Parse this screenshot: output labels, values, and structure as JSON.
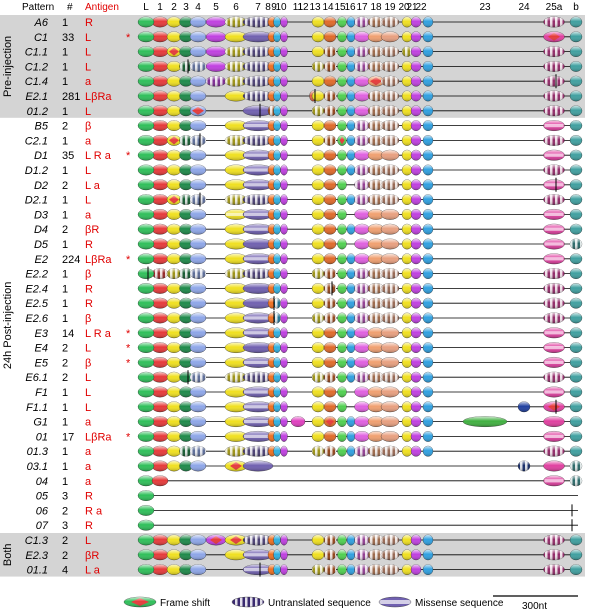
{
  "header": {
    "pattern": "Pattern",
    "count": "#",
    "antigen": "Antigen",
    "exons": [
      "L",
      "1",
      "2",
      "3",
      "4",
      "5",
      "6",
      "7",
      "8",
      "9",
      "10",
      "11",
      "12",
      "13",
      "14",
      "15",
      "16",
      "17",
      "18",
      "19",
      "20",
      "21",
      "22",
      "23",
      "24",
      "25a",
      "b"
    ]
  },
  "groups": [
    {
      "label": "Pre-injection",
      "shaded": true
    },
    {
      "label": "24h Post-injection",
      "shaded": false
    },
    {
      "label": "Both",
      "shaded": true
    }
  ],
  "rows": [
    {
      "pattern": "A6",
      "count": "1",
      "antigen": "R",
      "star": false
    },
    {
      "pattern": "C1",
      "count": "33",
      "antigen": "L",
      "star": true
    },
    {
      "pattern": "C1.1",
      "count": "1",
      "antigen": "L",
      "star": false
    },
    {
      "pattern": "C1.2",
      "count": "1",
      "antigen": "L",
      "star": false
    },
    {
      "pattern": "C1.4",
      "count": "1",
      "antigen": "a",
      "star": false
    },
    {
      "pattern": "E2.1",
      "count": "281",
      "antigen": "LβRa",
      "star": false
    },
    {
      "pattern": "01.2",
      "count": "1",
      "antigen": "L",
      "star": false
    },
    {
      "pattern": "B5",
      "count": "2",
      "antigen": "β",
      "star": false
    },
    {
      "pattern": "C2.1",
      "count": "1",
      "antigen": "a",
      "star": false
    },
    {
      "pattern": "D1",
      "count": "35",
      "antigen": "L   R a",
      "star": true
    },
    {
      "pattern": "D1.2",
      "count": "1",
      "antigen": "L",
      "star": false
    },
    {
      "pattern": "D2",
      "count": "2",
      "antigen": "L   a",
      "star": false
    },
    {
      "pattern": "D2.1",
      "count": "1",
      "antigen": "L",
      "star": false
    },
    {
      "pattern": "D3",
      "count": "1",
      "antigen": "a",
      "star": false
    },
    {
      "pattern": "D4",
      "count": "2",
      "antigen": "βR",
      "star": false
    },
    {
      "pattern": "D5",
      "count": "1",
      "antigen": "R",
      "star": false
    },
    {
      "pattern": "E2",
      "count": "224",
      "antigen": "LβRa",
      "star": true
    },
    {
      "pattern": "E2.2",
      "count": "1",
      "antigen": "β",
      "star": false
    },
    {
      "pattern": "E2.4",
      "count": "1",
      "antigen": "R",
      "star": false
    },
    {
      "pattern": "E2.5",
      "count": "1",
      "antigen": "R",
      "star": false
    },
    {
      "pattern": "E2.6",
      "count": "1",
      "antigen": "β",
      "star": false
    },
    {
      "pattern": "E3",
      "count": "14",
      "antigen": "L   R a",
      "star": true
    },
    {
      "pattern": "E4",
      "count": "2",
      "antigen": "L",
      "star": true
    },
    {
      "pattern": "E5",
      "count": "2",
      "antigen": "β",
      "star": true
    },
    {
      "pattern": "E6.1",
      "count": "2",
      "antigen": "L",
      "star": false
    },
    {
      "pattern": "F1",
      "count": "1",
      "antigen": "L",
      "star": false
    },
    {
      "pattern": "F1.1",
      "count": "1",
      "antigen": "L",
      "star": false
    },
    {
      "pattern": "G1",
      "count": "1",
      "antigen": "a",
      "star": false
    },
    {
      "pattern": "01",
      "count": "17",
      "antigen": "LβRa",
      "star": true
    },
    {
      "pattern": "01.3",
      "count": "1",
      "antigen": "a",
      "star": false
    },
    {
      "pattern": "03.1",
      "count": "1",
      "antigen": "a",
      "star": false
    },
    {
      "pattern": "04",
      "count": "1",
      "antigen": "a",
      "star": false
    },
    {
      "pattern": "05",
      "count": "3",
      "antigen": "R",
      "star": false
    },
    {
      "pattern": "06",
      "count": "2",
      "antigen": "R a",
      "star": false
    },
    {
      "pattern": "07",
      "count": "3",
      "antigen": "R",
      "star": false
    },
    {
      "pattern": "C1.3",
      "count": "2",
      "antigen": "L",
      "star": false
    },
    {
      "pattern": "E2.3",
      "count": "2",
      "antigen": "βR",
      "star": false
    },
    {
      "pattern": "01.1",
      "count": "4",
      "antigen": "L   a",
      "star": false
    }
  ],
  "star_symbol": "*",
  "legend": {
    "frame_shift": "Frame shift",
    "untranslated": "Untranslated sequence",
    "missense": "Missense sequence",
    "scale": "300nt"
  },
  "exon_colors": {
    "L": "#2fbf5a",
    "1": "#e63a3a",
    "2": "#f0e020",
    "3": "#1e8a4a",
    "4": "#8ea6e8",
    "5": "#c040e0",
    "6": "#f0e020",
    "7": "#7060b0",
    "8": "#f07020",
    "9": "#30b0e0",
    "10": "#c040e0",
    "11": "#e040c0",
    "12": "#e06040",
    "13": "#f0e020",
    "14": "#e06a2a",
    "15": "#50d050",
    "16": "#30a0e0",
    "17": "#e060e0",
    "18": "#f0a070",
    "19": "#e8a080",
    "20": "#f0e020",
    "21": "#c040e0",
    "22": "#30a0e0",
    "23": "#40b040",
    "24": "#2040a0",
    "25a": "#e040a0",
    "b": "#40a0a0"
  }
}
